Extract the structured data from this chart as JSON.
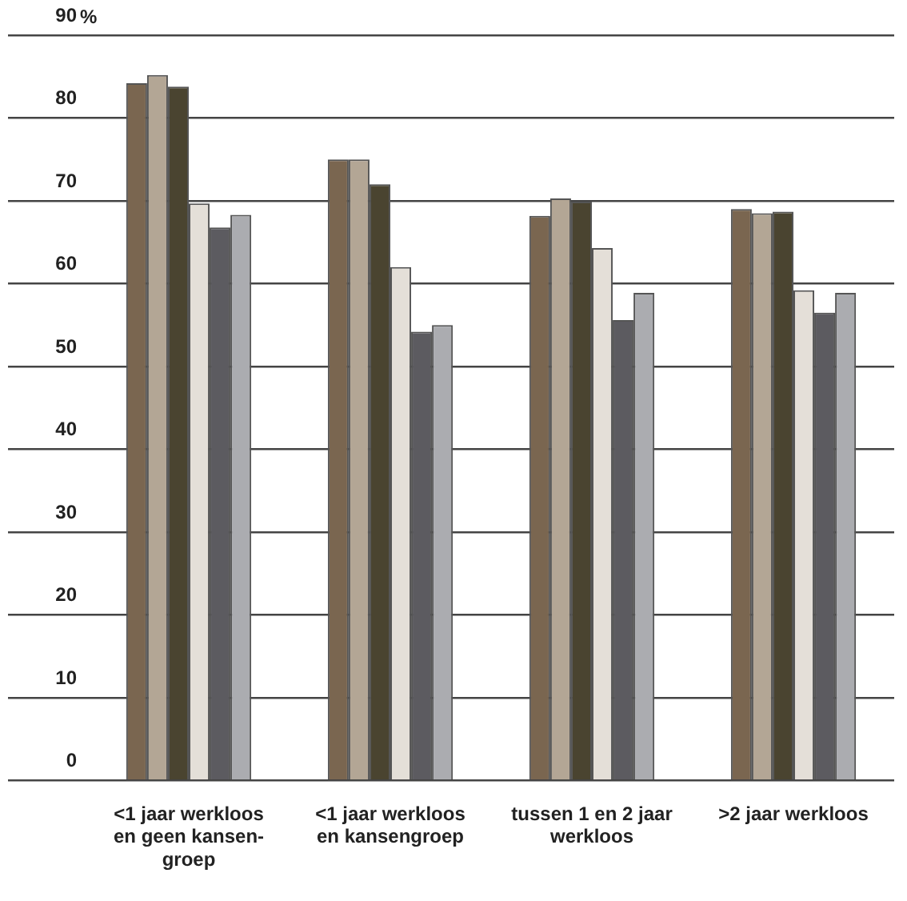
{
  "chart_data": {
    "type": "bar",
    "ylabel": "%",
    "categories": [
      "<1 jaar werkloos\nen geen kansen-\ngroep",
      "<1 jaar werkloos\nen kansengroep",
      "tussen 1 en 2 jaar\nwerkloos",
      ">2 jaar werkloos"
    ],
    "series": [
      {
        "color": "#7a6650",
        "values": [
          84.2,
          75,
          68.2,
          69.0
        ]
      },
      {
        "color": "#b3a695",
        "values": [
          85.2,
          75,
          70.3,
          68.5
        ]
      },
      {
        "color": "#4a4430",
        "values": [
          83.8,
          72.0,
          69.9,
          68.7
        ]
      },
      {
        "color": "#e4dfd8",
        "values": [
          69.7,
          62,
          64.3,
          59.2
        ]
      },
      {
        "color": "#5c5b60",
        "values": [
          66.8,
          54.2,
          55.6,
          56.5
        ]
      },
      {
        "color": "#abacb0",
        "values": [
          68.3,
          55,
          58.9,
          58.9
        ]
      }
    ],
    "ylim": [
      0,
      90
    ],
    "yticks": [
      0,
      10,
      20,
      30,
      40,
      50,
      60,
      70,
      80,
      90
    ],
    "grid": "y",
    "legend": false
  }
}
